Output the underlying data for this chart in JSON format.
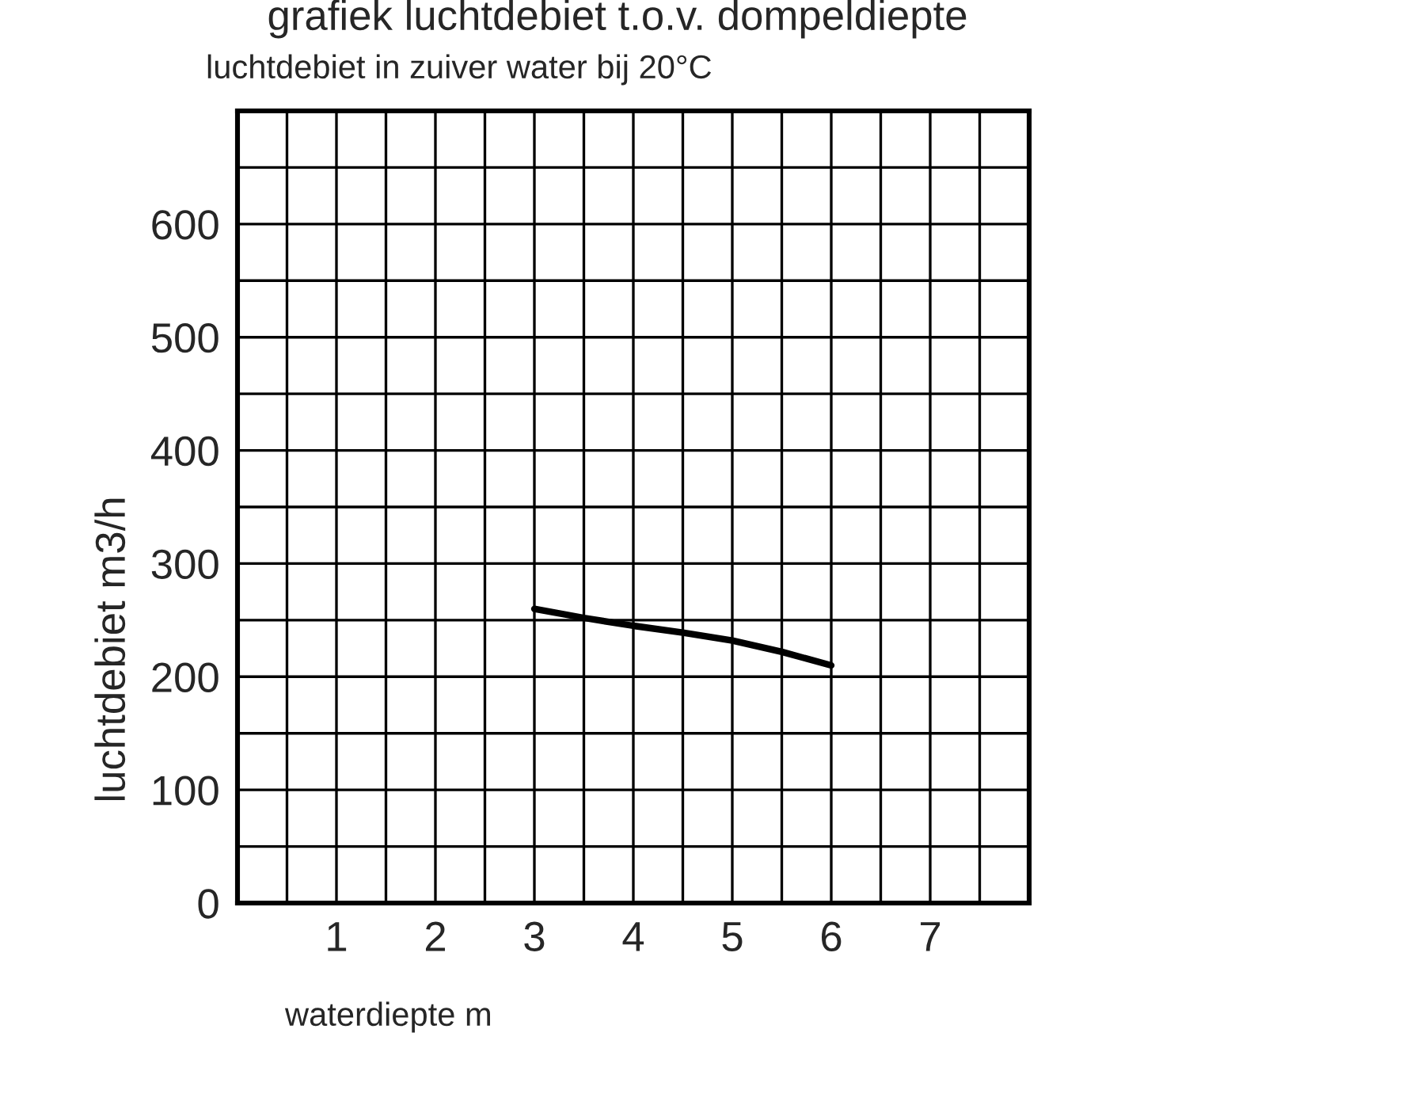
{
  "chart_data": {
    "type": "line",
    "title": "grafiek luchtdebiet t.o.v. dompeldiepte",
    "subtitle": "luchtdebiet in zuiver water bij 20°C",
    "xlabel": "waterdiepte m",
    "ylabel": "luchtdebiet m3/h",
    "series": [
      {
        "color": "#000000",
        "x": [
          3,
          3.5,
          4,
          4.5,
          5,
          5.5,
          6
        ],
        "values": [
          260,
          252,
          245,
          239,
          232,
          222,
          210
        ]
      }
    ],
    "xlim": [
      0,
      8
    ],
    "xticks": [
      {
        "value": 0,
        "label": null
      },
      {
        "value": 0.5,
        "label": null
      },
      1,
      {
        "value": 1.5,
        "label": null
      },
      2,
      {
        "value": 2.5,
        "label": null
      },
      3,
      {
        "value": 3.5,
        "label": null
      },
      4,
      {
        "value": 4.5,
        "label": null
      },
      5,
      {
        "value": 5.5,
        "label": null
      },
      6,
      {
        "value": 6.5,
        "label": null
      },
      7,
      {
        "value": 7.5,
        "label": null
      },
      {
        "value": 8,
        "label": null
      }
    ],
    "ylim": [
      0,
      700
    ],
    "yticks": [
      0,
      {
        "value": 50,
        "label": null
      },
      100,
      {
        "value": 150,
        "label": null
      },
      200,
      {
        "value": 250,
        "label": null
      },
      300,
      {
        "value": 350,
        "label": null
      },
      400,
      {
        "value": 450,
        "label": null
      },
      500,
      {
        "value": 550,
        "label": null
      },
      600,
      {
        "value": 650,
        "label": null
      },
      {
        "value": 700,
        "label": null
      }
    ],
    "grid": true,
    "marker": "none",
    "line_style": "solid"
  }
}
